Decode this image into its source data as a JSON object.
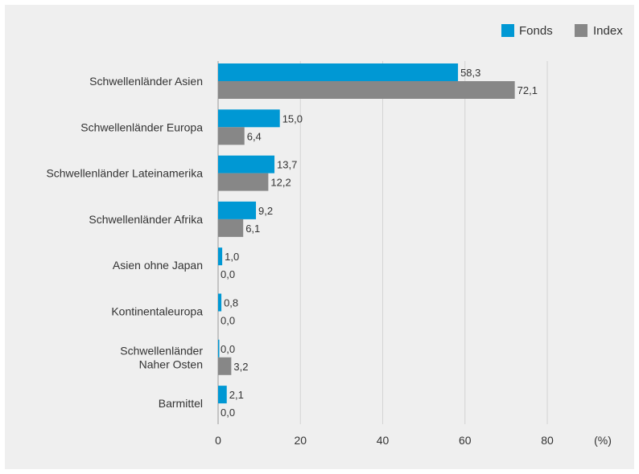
{
  "chart_data": {
    "type": "bar",
    "orientation": "horizontal",
    "categories": [
      [
        "Schwellenländer Asien"
      ],
      [
        "Schwellenländer Europa"
      ],
      [
        "Schwellenländer Lateinamerika"
      ],
      [
        "Schwellenländer Afrika"
      ],
      [
        "Asien ohne Japan"
      ],
      [
        "Kontinentaleuropa"
      ],
      [
        "Schwellenländer",
        "Naher Osten"
      ],
      [
        "Barmittel"
      ]
    ],
    "series": [
      {
        "name": "Fonds",
        "color": "#0098d4",
        "values": [
          58.3,
          15.0,
          13.7,
          9.2,
          1.0,
          0.8,
          0.0,
          2.1
        ],
        "labels": [
          "58,3",
          "15,0",
          "13,7",
          "9,2",
          "1,0",
          "0,8",
          "0,0",
          "2,1"
        ]
      },
      {
        "name": "Index",
        "color": "#878787",
        "values": [
          72.1,
          6.4,
          12.2,
          6.1,
          0.0,
          0.0,
          3.2,
          0.0
        ],
        "labels": [
          "72,1",
          "6,4",
          "12,2",
          "6,1",
          "0,0",
          "0,0",
          "3,2",
          "0,0"
        ]
      }
    ],
    "x_ticks": [
      0,
      20,
      40,
      60,
      80
    ],
    "x_tick_labels": [
      "0",
      "20",
      "40",
      "60",
      "80"
    ],
    "x_unit": "(%)",
    "xlim": [
      0,
      80
    ],
    "grid": "vertical",
    "legend_position": "top-right"
  }
}
